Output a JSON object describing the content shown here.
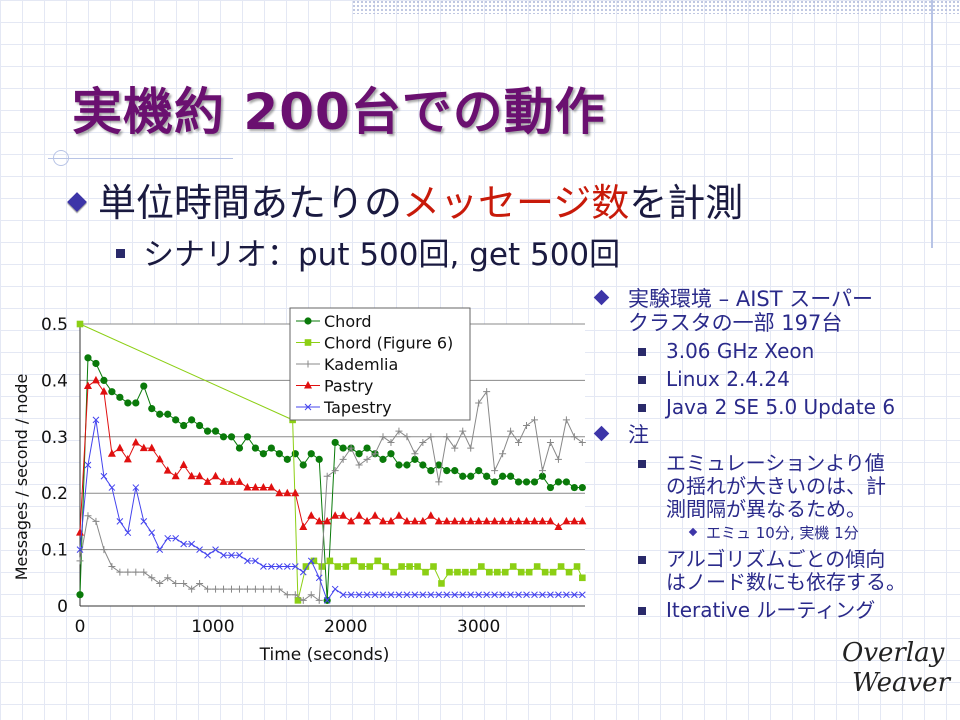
{
  "slide": {
    "title": "実機約 200台での動作",
    "bullet1_pre": "単位時間あたりの",
    "bullet1_red": "メッセージ数",
    "bullet1_post": "を計測",
    "bullet2": "シナリオ：put 500回, get 500回"
  },
  "right_panel": {
    "env_line1": "実験環境 – AIST スーパー",
    "env_line2": "クラスタの一部 197台",
    "env_items": [
      "3.06 GHz Xeon",
      "Linux 2.4.24",
      "Java 2 SE 5.0 Update 6"
    ],
    "note_head": "注",
    "note1_l1": "エミュレーションより値",
    "note1_l2": "の揺れが大きいのは、計",
    "note1_l3": "測間隔が異なるため。",
    "note1_sub": "エミュ 10分, 実機 1分",
    "note2_l1": "アルゴリズムごとの傾向",
    "note2_l2": "はノード数にも依存する。",
    "note3": "Iterative ルーティング"
  },
  "logo": {
    "line1": "Overlay",
    "line2": "Weaver"
  },
  "colors": {
    "title": "#6a1070",
    "accent_red": "#c81a0a",
    "text_blue": "#2a2a8a",
    "diamond": "#3d35a8"
  },
  "chart_data": {
    "type": "line",
    "title": "",
    "xlabel": "Time (seconds)",
    "ylabel": "Messages / second / node",
    "xlim": [
      0,
      3800
    ],
    "ylim": [
      0,
      0.5
    ],
    "xticks": [
      0,
      1000,
      2000,
      3000
    ],
    "yticks": [
      0,
      0.1,
      0.2,
      0.3,
      0.4,
      0.5
    ],
    "ytick_labels": [
      "0",
      "0.1",
      "0.2",
      "0.3",
      "0.4",
      "0.5"
    ],
    "grid": true,
    "legend_position": "top-right",
    "series": [
      {
        "name": "Chord",
        "color": "#0a7a0a",
        "marker": "circle",
        "x": [
          0,
          60,
          120,
          180,
          240,
          300,
          360,
          420,
          480,
          540,
          600,
          660,
          720,
          780,
          840,
          900,
          960,
          1020,
          1080,
          1140,
          1200,
          1260,
          1320,
          1380,
          1440,
          1500,
          1560,
          1620,
          1680,
          1740,
          1800,
          1860,
          1920,
          1980,
          2040,
          2100,
          2160,
          2220,
          2280,
          2340,
          2400,
          2460,
          2520,
          2580,
          2640,
          2700,
          2760,
          2820,
          2880,
          2940,
          3000,
          3060,
          3120,
          3180,
          3240,
          3300,
          3360,
          3420,
          3480,
          3540,
          3600,
          3660,
          3720,
          3780
        ],
        "values": [
          0.02,
          0.44,
          0.43,
          0.4,
          0.38,
          0.37,
          0.36,
          0.36,
          0.39,
          0.35,
          0.34,
          0.34,
          0.33,
          0.32,
          0.33,
          0.32,
          0.31,
          0.31,
          0.3,
          0.3,
          0.28,
          0.3,
          0.28,
          0.27,
          0.28,
          0.27,
          0.26,
          0.27,
          0.25,
          0.27,
          0.26,
          0.01,
          0.29,
          0.28,
          0.28,
          0.27,
          0.28,
          0.27,
          0.26,
          0.27,
          0.25,
          0.25,
          0.26,
          0.25,
          0.24,
          0.25,
          0.24,
          0.24,
          0.23,
          0.23,
          0.24,
          0.23,
          0.22,
          0.23,
          0.23,
          0.22,
          0.22,
          0.22,
          0.23,
          0.21,
          0.22,
          0.22,
          0.21,
          0.21
        ]
      },
      {
        "name": "Chord (Figure 6)",
        "color": "#8ccf14",
        "marker": "square",
        "x": [
          0,
          1600,
          1640,
          1700,
          1760,
          1820,
          1880,
          1940,
          2000,
          2060,
          2120,
          2180,
          2240,
          2300,
          2360,
          2420,
          2480,
          2540,
          2600,
          2660,
          2720,
          2780,
          2840,
          2900,
          2960,
          3020,
          3080,
          3140,
          3200,
          3260,
          3320,
          3380,
          3440,
          3500,
          3560,
          3620,
          3680,
          3740,
          3780
        ],
        "values": [
          0.5,
          0.33,
          0.01,
          0.07,
          0.08,
          0.07,
          0.08,
          0.07,
          0.07,
          0.08,
          0.07,
          0.07,
          0.08,
          0.07,
          0.06,
          0.07,
          0.07,
          0.07,
          0.06,
          0.07,
          0.04,
          0.06,
          0.06,
          0.06,
          0.06,
          0.07,
          0.06,
          0.06,
          0.06,
          0.07,
          0.06,
          0.06,
          0.07,
          0.06,
          0.06,
          0.07,
          0.06,
          0.07,
          0.05
        ]
      },
      {
        "name": "Kademlia",
        "color": "#888888",
        "marker": "plus",
        "x": [
          0,
          60,
          120,
          180,
          240,
          300,
          360,
          420,
          480,
          540,
          600,
          660,
          720,
          780,
          840,
          900,
          960,
          1020,
          1080,
          1140,
          1200,
          1260,
          1320,
          1380,
          1440,
          1500,
          1560,
          1620,
          1680,
          1740,
          1800,
          1860,
          1920,
          1980,
          2040,
          2100,
          2160,
          2220,
          2280,
          2340,
          2400,
          2460,
          2520,
          2580,
          2640,
          2700,
          2760,
          2820,
          2880,
          2940,
          3000,
          3060,
          3120,
          3180,
          3240,
          3300,
          3360,
          3420,
          3480,
          3540,
          3600,
          3660,
          3720,
          3780
        ],
        "values": [
          0.08,
          0.16,
          0.15,
          0.1,
          0.07,
          0.06,
          0.06,
          0.06,
          0.06,
          0.05,
          0.04,
          0.05,
          0.04,
          0.04,
          0.03,
          0.04,
          0.03,
          0.03,
          0.03,
          0.03,
          0.03,
          0.03,
          0.03,
          0.03,
          0.03,
          0.03,
          0.02,
          0.02,
          0.01,
          0.02,
          0.01,
          0.23,
          0.24,
          0.26,
          0.28,
          0.25,
          0.26,
          0.27,
          0.3,
          0.29,
          0.31,
          0.3,
          0.27,
          0.29,
          0.3,
          0.22,
          0.3,
          0.28,
          0.31,
          0.28,
          0.36,
          0.38,
          0.24,
          0.27,
          0.31,
          0.29,
          0.32,
          0.33,
          0.24,
          0.29,
          0.26,
          0.33,
          0.3,
          0.29
        ]
      },
      {
        "name": "Pastry",
        "color": "#e01010",
        "marker": "triangle",
        "x": [
          0,
          60,
          120,
          180,
          240,
          300,
          360,
          420,
          480,
          540,
          600,
          660,
          720,
          780,
          840,
          900,
          960,
          1020,
          1080,
          1140,
          1200,
          1260,
          1320,
          1380,
          1440,
          1500,
          1560,
          1620,
          1680,
          1740,
          1800,
          1860,
          1920,
          1980,
          2040,
          2100,
          2160,
          2220,
          2280,
          2340,
          2400,
          2460,
          2520,
          2580,
          2640,
          2700,
          2760,
          2820,
          2880,
          2940,
          3000,
          3060,
          3120,
          3180,
          3240,
          3300,
          3360,
          3420,
          3480,
          3540,
          3600,
          3660,
          3720,
          3780
        ],
        "values": [
          0.13,
          0.39,
          0.4,
          0.38,
          0.27,
          0.28,
          0.26,
          0.29,
          0.28,
          0.28,
          0.26,
          0.24,
          0.23,
          0.25,
          0.23,
          0.23,
          0.22,
          0.23,
          0.22,
          0.22,
          0.22,
          0.21,
          0.21,
          0.21,
          0.21,
          0.2,
          0.2,
          0.2,
          0.14,
          0.16,
          0.15,
          0.15,
          0.16,
          0.16,
          0.15,
          0.16,
          0.15,
          0.16,
          0.15,
          0.15,
          0.16,
          0.15,
          0.15,
          0.15,
          0.16,
          0.15,
          0.15,
          0.15,
          0.15,
          0.15,
          0.15,
          0.15,
          0.15,
          0.15,
          0.15,
          0.15,
          0.15,
          0.15,
          0.15,
          0.15,
          0.14,
          0.15,
          0.15,
          0.15
        ]
      },
      {
        "name": "Tapestry",
        "color": "#4444ee",
        "marker": "x",
        "x": [
          0,
          60,
          120,
          180,
          240,
          300,
          360,
          420,
          480,
          540,
          600,
          660,
          720,
          780,
          840,
          900,
          960,
          1020,
          1080,
          1140,
          1200,
          1260,
          1320,
          1380,
          1440,
          1500,
          1560,
          1620,
          1680,
          1740,
          1800,
          1860,
          1920,
          1980,
          2040,
          2100,
          2160,
          2220,
          2280,
          2340,
          2400,
          2460,
          2520,
          2580,
          2640,
          2700,
          2760,
          2820,
          2880,
          2940,
          3000,
          3060,
          3120,
          3180,
          3240,
          3300,
          3360,
          3420,
          3480,
          3540,
          3600,
          3660,
          3720,
          3780
        ],
        "values": [
          0.1,
          0.25,
          0.33,
          0.23,
          0.21,
          0.15,
          0.13,
          0.21,
          0.15,
          0.13,
          0.1,
          0.12,
          0.12,
          0.11,
          0.11,
          0.1,
          0.09,
          0.1,
          0.09,
          0.09,
          0.09,
          0.08,
          0.08,
          0.07,
          0.07,
          0.07,
          0.07,
          0.07,
          0.06,
          0.08,
          0.05,
          0.01,
          0.03,
          0.02,
          0.02,
          0.02,
          0.02,
          0.02,
          0.02,
          0.02,
          0.02,
          0.02,
          0.02,
          0.02,
          0.02,
          0.02,
          0.02,
          0.02,
          0.02,
          0.02,
          0.02,
          0.02,
          0.02,
          0.02,
          0.02,
          0.02,
          0.02,
          0.02,
          0.02,
          0.02,
          0.02,
          0.02,
          0.02,
          0.02
        ]
      }
    ]
  }
}
